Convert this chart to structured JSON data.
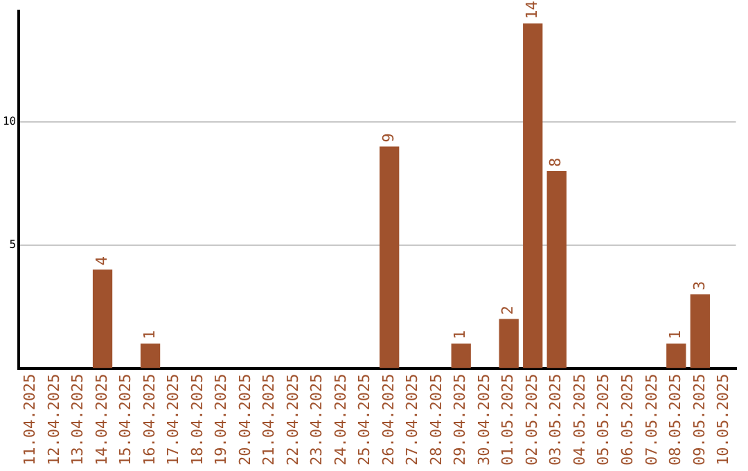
{
  "chart_data": {
    "type": "bar",
    "categories": [
      "11.04.2025",
      "12.04.2025",
      "13.04.2025",
      "14.04.2025",
      "15.04.2025",
      "16.04.2025",
      "17.04.2025",
      "18.04.2025",
      "19.04.2025",
      "20.04.2025",
      "21.04.2025",
      "22.04.2025",
      "23.04.2025",
      "24.04.2025",
      "25.04.2025",
      "26.04.2025",
      "27.04.2025",
      "28.04.2025",
      "29.04.2025",
      "30.04.2025",
      "01.05.2025",
      "02.05.2025",
      "03.05.2025",
      "04.05.2025",
      "05.05.2025",
      "06.05.2025",
      "07.05.2025",
      "08.05.2025",
      "09.05.2025",
      "10.05.2025"
    ],
    "values": [
      0,
      0,
      0,
      4,
      0,
      1,
      0,
      0,
      0,
      0,
      0,
      0,
      0,
      0,
      0,
      9,
      0,
      0,
      1,
      0,
      2,
      14,
      8,
      0,
      0,
      0,
      0,
      1,
      3,
      0
    ],
    "value_labels": [
      null,
      null,
      null,
      "4",
      null,
      "1",
      null,
      null,
      null,
      null,
      null,
      null,
      null,
      null,
      null,
      "9",
      null,
      null,
      "1",
      null,
      "2",
      "14",
      "8",
      null,
      null,
      null,
      null,
      "1",
      "3",
      null
    ],
    "color": "#a0522d",
    "ylim": [
      0,
      14.5
    ],
    "yticks": [
      5,
      10
    ],
    "grid": "y",
    "legend": false
  }
}
